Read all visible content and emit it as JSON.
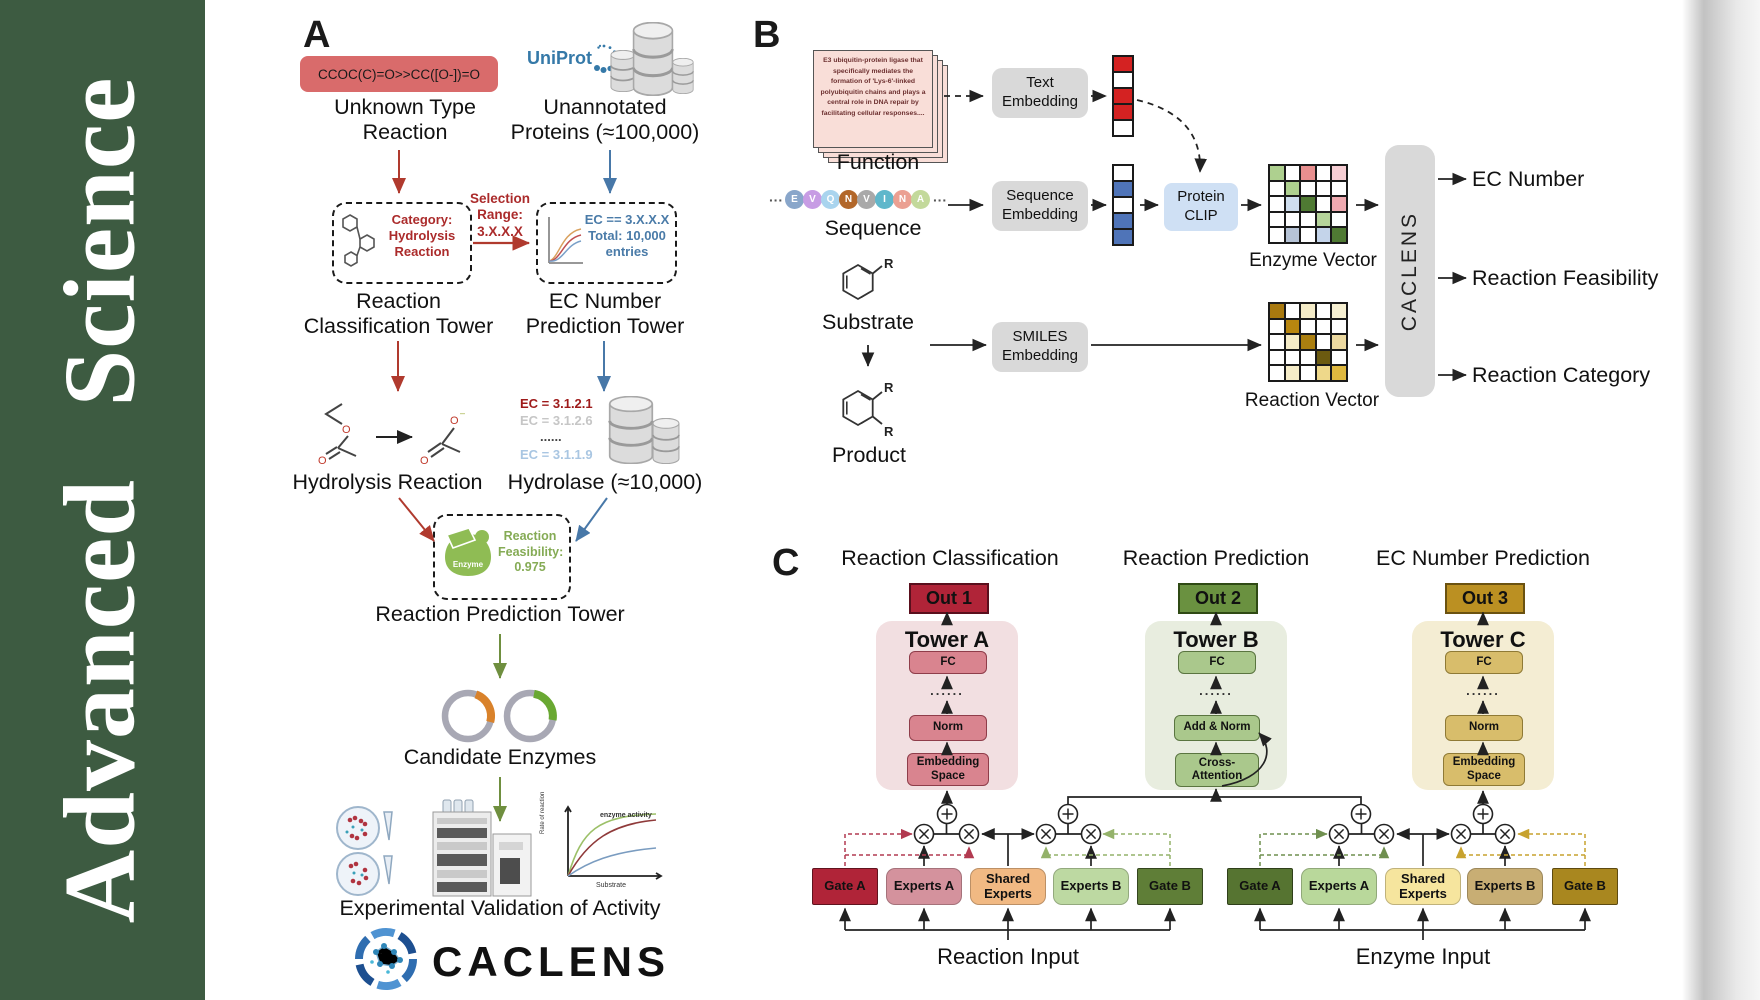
{
  "journal": {
    "name": "Advanced  Science"
  },
  "panelA": {
    "label": "A",
    "smiles": "CCOC(C)=O>>CC([O-])=O",
    "unknown_reaction": "Unknown Type\nReaction",
    "uniprot": "UniProt",
    "unannotated": "Unannotated\nProteins (≈100,000)",
    "classification_box": "Category:\nHydrolysis\nReaction",
    "selection": "Selection\nRange:\n3.X.X.X",
    "ec_box": "EC == 3.X.X.X\nTotal: 10,000\nentries",
    "tower1": "Reaction\nClassification Tower",
    "tower2": "EC Number\nPrediction Tower",
    "hydrolysis": "Hydrolysis Reaction",
    "ec_list": [
      "EC = 3.1.2.1",
      "EC = 3.1.2.6",
      "......",
      "EC = 3.1.1.9"
    ],
    "hydrolase": "Hydrolase (≈10,000)",
    "enzyme_blob": "Enzyme",
    "feasibility": "Reaction\nFeasibility:\n0.975",
    "tower3": "Reaction Prediction Tower",
    "candidates": "Candidate Enzymes",
    "graph": {
      "curve_label": "enzyme activity",
      "ylabel": "Rate of reaction",
      "xlabel": "Substrate"
    },
    "validation": "Experimental Validation of Activity",
    "wordmark": "CACLENS"
  },
  "panelB": {
    "label": "B",
    "function_card": "E3 ubiquitin-protein ligase that specifically mediates the formation of 'Lys-6'-linked polyubiquitin chains and plays a central role in DNA repair by facilitating cellular responses....",
    "function_label": "Function",
    "sequence_label": "Sequence",
    "ellipsis": "···",
    "residues": [
      {
        "t": "E",
        "c": "#89a6ca"
      },
      {
        "t": "V",
        "c": "#c79ce4"
      },
      {
        "t": "Q",
        "c": "#a9d4ee"
      },
      {
        "t": "N",
        "c": "#b2672a"
      },
      {
        "t": "V",
        "c": "#a9a9a9"
      },
      {
        "t": "I",
        "c": "#5fb7cb"
      },
      {
        "t": "N",
        "c": "#eba092"
      },
      {
        "t": "A",
        "c": "#c3d99b"
      }
    ],
    "substrate_label": "Substrate",
    "product_label": "Product",
    "r_label": "R",
    "text_embedding": "Text\nEmbedding",
    "sequence_embedding": "Sequence\nEmbedding",
    "smiles_embedding": "SMILES\nEmbedding",
    "protein_clip": "Protein\nCLIP",
    "enzyme_vector_label": "Enzyme Vector",
    "reaction_vector_label": "Reaction Vector",
    "caclens": "CACLENS",
    "outputs": [
      "EC Number",
      "Reaction Feasibility",
      "Reaction Category"
    ],
    "text_vector_cells": [
      "#d42222",
      "#ffffff",
      "#d42222",
      "#d42222",
      "#ffffff"
    ],
    "seq_vector_cells": [
      "#ffffff",
      "#4f74b8",
      "#ffffff",
      "#4f74b8",
      "#4f74b8"
    ],
    "enzyme_vector_cells": [
      "#aed08f",
      "#ffffff",
      "#e88f8f",
      "#ffffff",
      "#f6cdd3",
      "#ffffff",
      "#aed08f",
      "#ffffff",
      "#ffffff",
      "#ffffff",
      "#ffffff",
      "#cfdeef",
      "#4f7a33",
      "#ffffff",
      "#efa9b0",
      "#ffffff",
      "#ffffff",
      "#ffffff",
      "#b5d49a",
      "#ffffff",
      "#ffffff",
      "#b6c3d6",
      "#ffffff",
      "#c4d4ea",
      "#4f7a33"
    ],
    "reaction_vector_cells": [
      "#a8790f",
      "#ffffff",
      "#f5ecc8",
      "#ffffff",
      "#f7f0d2",
      "#ffffff",
      "#b8860f",
      "#ffffff",
      "#ffffff",
      "#ffffff",
      "#ffffff",
      "#f5ecc8",
      "#ab7f10",
      "#ffffff",
      "#ecd9a0",
      "#ffffff",
      "#ffffff",
      "#ffffff",
      "#6b5a10",
      "#ffffff",
      "#ffffff",
      "#f5ecc8",
      "#ffffff",
      "#eed88a",
      "#e0b93f"
    ]
  },
  "panelC": {
    "label": "C",
    "headers": [
      "Reaction Classification",
      "Reaction Prediction",
      "EC Number Prediction"
    ],
    "towers": [
      {
        "out": "Out 1",
        "name": "Tower A",
        "top": "FC",
        "dots": "......",
        "mid": "Norm",
        "bottom": "Embedding\nSpace"
      },
      {
        "out": "Out 2",
        "name": "Tower B",
        "top": "FC",
        "dots": "......",
        "mid": "Add & Norm",
        "bottom": "Cross-\nAttention"
      },
      {
        "out": "Out 3",
        "name": "Tower C",
        "top": "FC",
        "dots": "......",
        "mid": "Norm",
        "bottom": "Embedding\nSpace"
      }
    ],
    "groups": [
      {
        "boxes": [
          "Gate A",
          "Experts A",
          "Shared\nExperts",
          "Experts B",
          "Gate B"
        ],
        "input": "Reaction Input"
      },
      {
        "boxes": [
          "Gate A",
          "Experts A",
          "Shared\nExperts",
          "Experts B",
          "Gate B"
        ],
        "input": "Enzyme Input"
      }
    ]
  },
  "colors": {
    "sidebar": "#3d5b41",
    "red_accent": "#b03a2e",
    "blue_accent": "#4878a8",
    "olive_accent": "#6f8f3f",
    "smiles_box": "#d96b6b",
    "embedding_box": "#d9d9d9",
    "protein_clip": "#cfe0f4",
    "caclens_box": "#d9d9d9",
    "function_card": "#f9ded8",
    "out1": "#b02438",
    "out2": "#6a9140",
    "out3": "#bb9022",
    "towerA_panel": "#f2dfe1",
    "towerA_box": "#d9848f",
    "towerB_panel": "#e8eddf",
    "towerB_box": "#aac88c",
    "towerC_panel": "#f4edd3",
    "towerC_box": "#d8bd6b",
    "g1_gateA": "#b02438",
    "g1_expertsA": "#d4929d",
    "g1_shared": "#f1b983",
    "g1_expertsB": "#bdd9a2",
    "g1_gateB": "#5f7e37",
    "g2_gateA": "#567431",
    "g2_expertsA": "#b9d89b",
    "g2_shared": "#f6e59e",
    "g2_expertsB": "#c8ae74",
    "g2_gateB": "#a9871f"
  }
}
